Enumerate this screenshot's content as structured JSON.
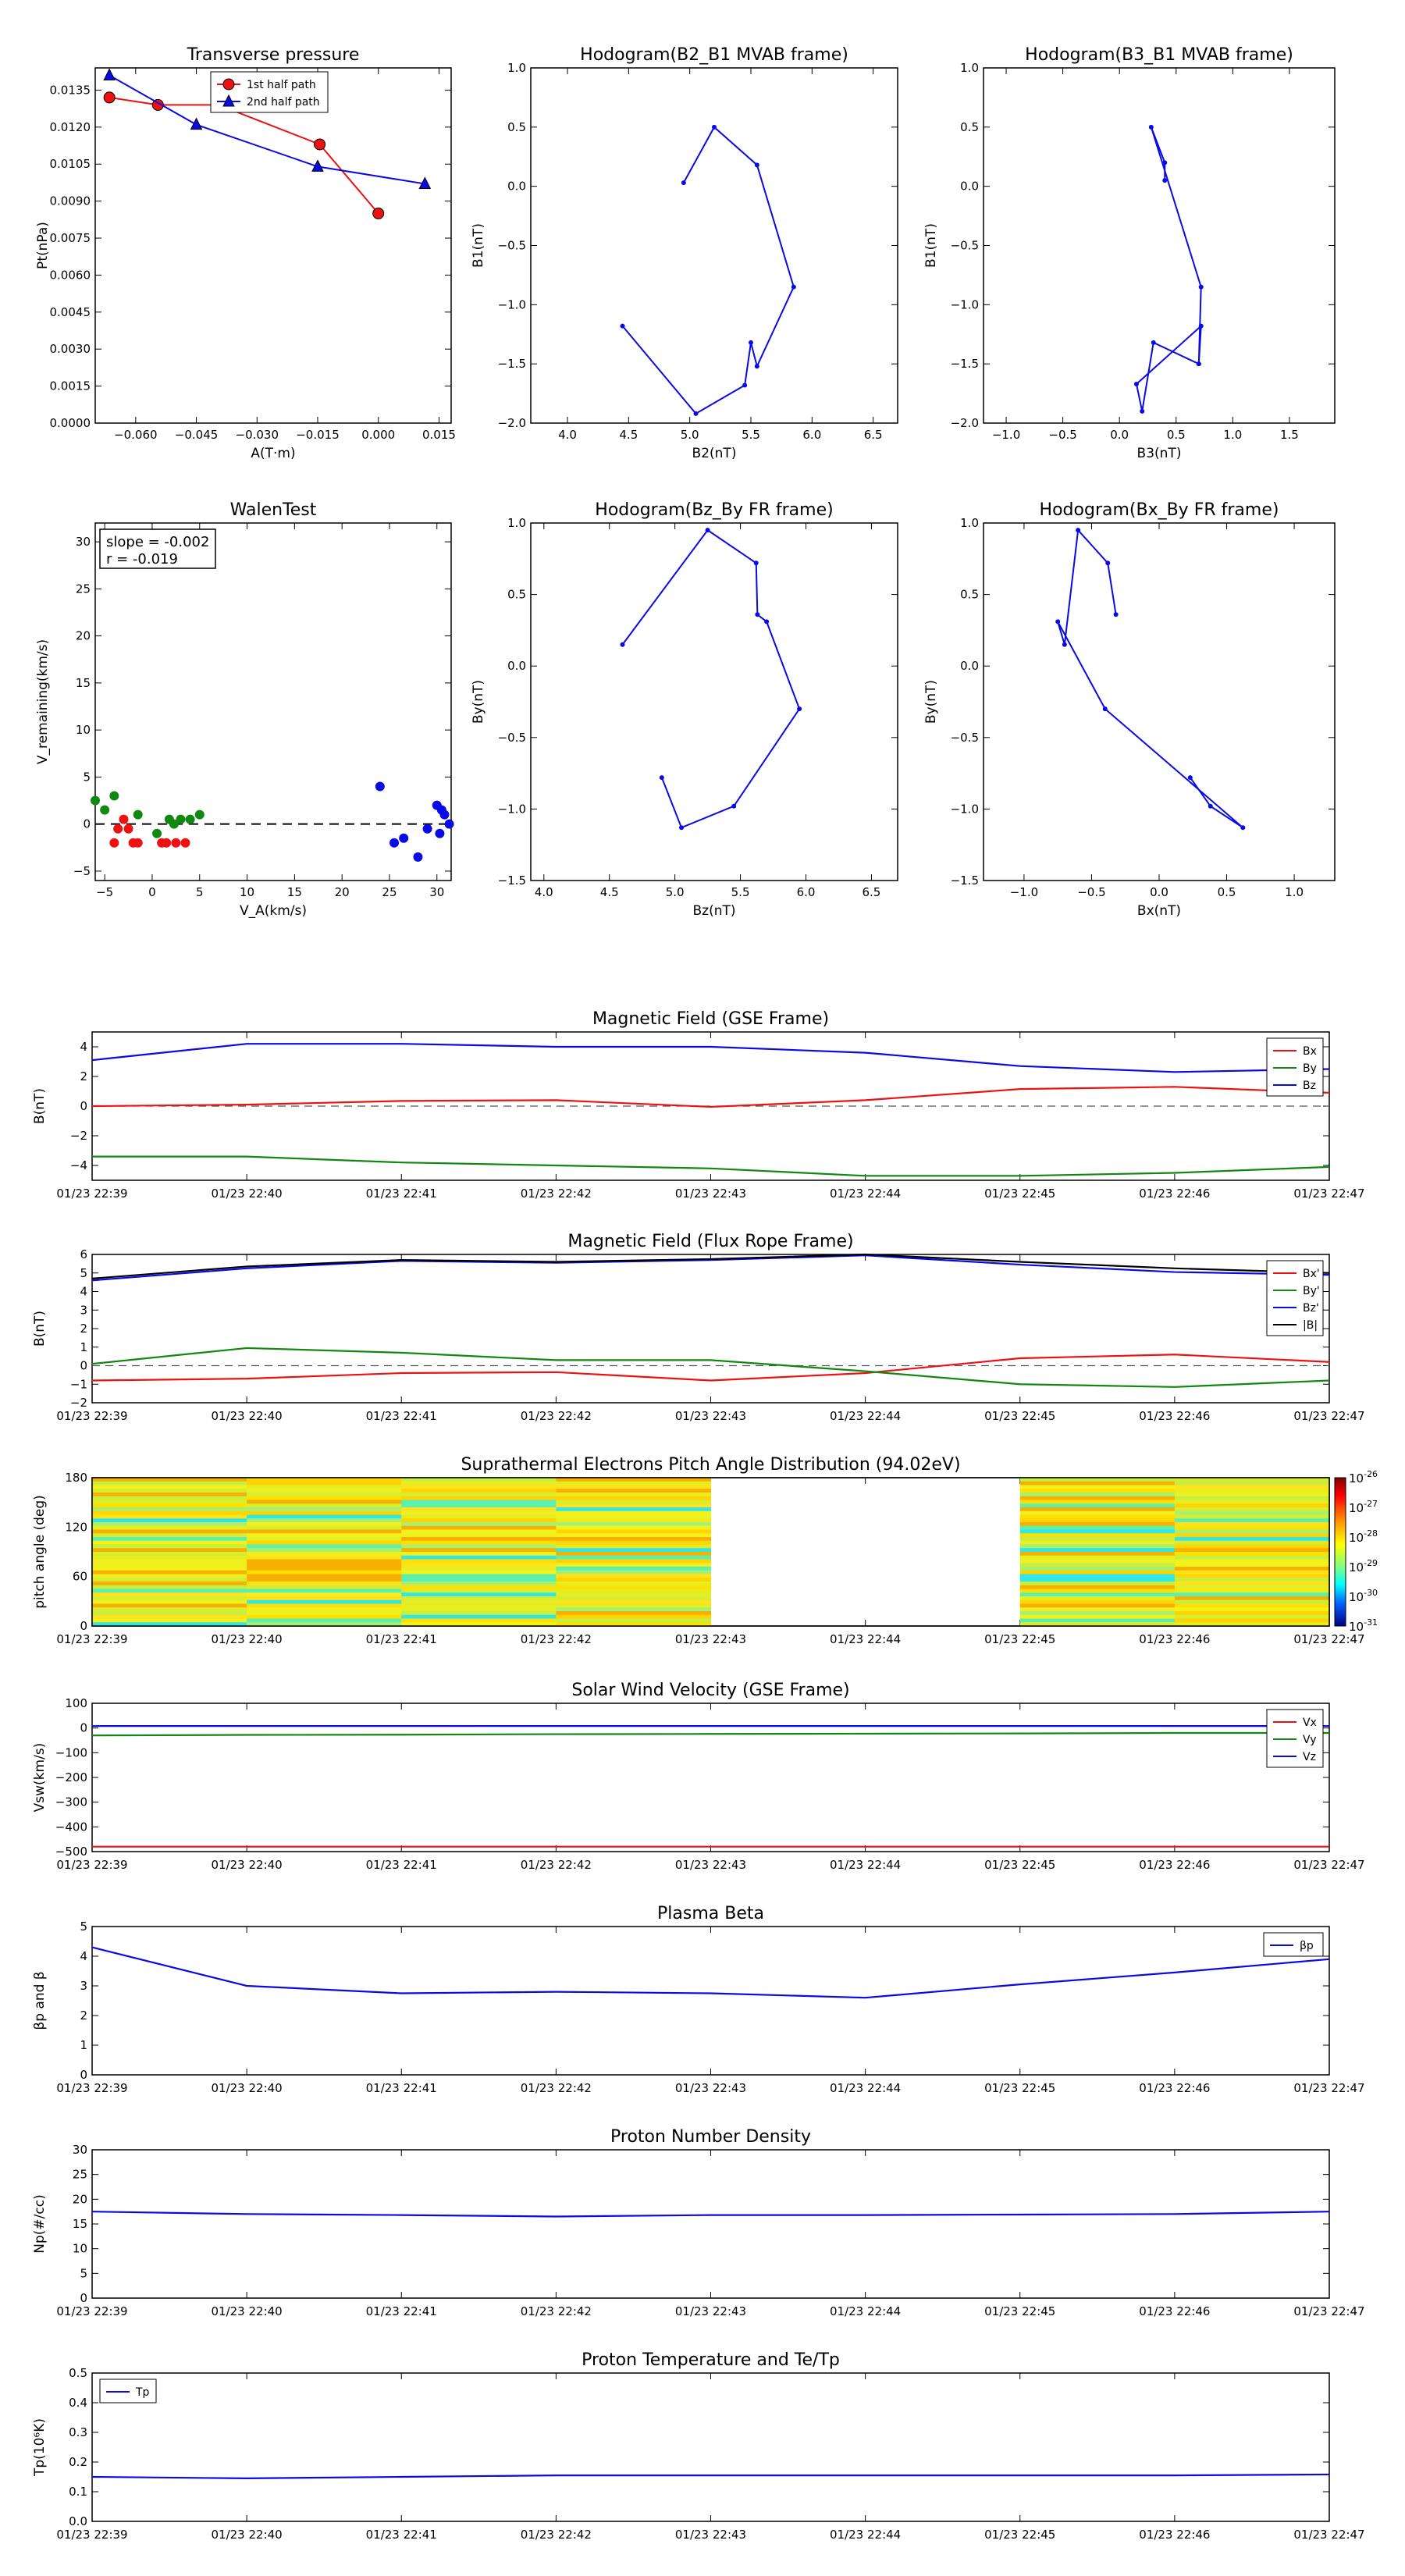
{
  "time_ticks": [
    "01/23 22:39",
    "01/23 22:40",
    "01/23 22:41",
    "01/23 22:42",
    "01/23 22:43",
    "01/23 22:44",
    "01/23 22:45",
    "01/23 22:46",
    "01/23 22:47"
  ],
  "colors": {
    "red": "#ee1111",
    "green": "#118811",
    "blue": "#0a0ae6",
    "black": "#000000",
    "dashed": "#555555"
  },
  "chart_data": [
    {
      "id": "transverse-pressure",
      "type": "line",
      "title": "Transverse pressure",
      "xlabel": "A(T·m)",
      "ylabel": "Pt(nPa)",
      "xlim": [
        -0.07,
        0.018
      ],
      "ylim": [
        0,
        0.0144
      ],
      "xticks": [
        "−0.060",
        "−0.045",
        "−0.030",
        "−0.015",
        "0.000",
        "0.015"
      ],
      "xtick_values": [
        -0.06,
        -0.045,
        -0.03,
        -0.015,
        0,
        0.015
      ],
      "yticks": [
        "0.0000",
        "0.0015",
        "0.0030",
        "0.0045",
        "0.0060",
        "0.0075",
        "0.0090",
        "0.0105",
        "0.0120",
        "0.0135"
      ],
      "ytick_values": [
        0,
        0.0015,
        0.003,
        0.0045,
        0.006,
        0.0075,
        0.009,
        0.0105,
        0.012,
        0.0135
      ],
      "legend_position": "top-center",
      "series": [
        {
          "name": "1st half path",
          "color": "red",
          "marker": "circle",
          "x": [
            -0.0665,
            -0.0545,
            -0.0395,
            -0.0145,
            0.0
          ],
          "y": [
            0.0132,
            0.0129,
            0.0129,
            0.0113,
            0.0085
          ]
        },
        {
          "name": "2nd half path",
          "color": "blue",
          "marker": "triangle",
          "x": [
            -0.0665,
            -0.045,
            -0.015,
            0.0115
          ],
          "y": [
            0.0141,
            0.0121,
            0.0104,
            0.0097
          ]
        }
      ]
    },
    {
      "id": "hodogram-b2-b1",
      "type": "line",
      "title": "Hodogram(B2_B1 MVAB frame)",
      "xlabel": "B2(nT)",
      "ylabel": "B1(nT)",
      "xlim": [
        3.7,
        6.7
      ],
      "ylim": [
        -2.0,
        1.0
      ],
      "xticks": [
        "4.0",
        "4.5",
        "5.0",
        "5.5",
        "6.0",
        "6.5"
      ],
      "xtick_values": [
        4.0,
        4.5,
        5.0,
        5.5,
        6.0,
        6.5
      ],
      "yticks": [
        "−2.0",
        "−1.5",
        "−1.0",
        "−0.5",
        "0.0",
        "0.5",
        "1.0"
      ],
      "ytick_values": [
        -2.0,
        -1.5,
        -1.0,
        -0.5,
        0.0,
        0.5,
        1.0
      ],
      "series": [
        {
          "color": "blue",
          "marker": "dot",
          "x": [
            4.95,
            5.2,
            5.55,
            5.85,
            5.55,
            5.5,
            5.45,
            5.05,
            4.45
          ],
          "y": [
            0.03,
            0.5,
            0.18,
            -0.85,
            -1.52,
            -1.32,
            -1.68,
            -1.92,
            -1.18
          ]
        }
      ]
    },
    {
      "id": "hodogram-b3-b1",
      "type": "line",
      "title": "Hodogram(B3_B1 MVAB frame)",
      "xlabel": "B3(nT)",
      "ylabel": "B1(nT)",
      "xlim": [
        -1.2,
        1.9
      ],
      "ylim": [
        -2.0,
        1.0
      ],
      "xticks": [
        "−1.0",
        "−0.5",
        "0.0",
        "0.5",
        "1.0",
        "1.5"
      ],
      "xtick_values": [
        -1.0,
        -0.5,
        0.0,
        0.5,
        1.0,
        1.5
      ],
      "yticks": [
        "−2.0",
        "−1.5",
        "−1.0",
        "−0.5",
        "0.0",
        "0.5",
        "1.0"
      ],
      "ytick_values": [
        -2.0,
        -1.5,
        -1.0,
        -0.5,
        0.0,
        0.5,
        1.0
      ],
      "series": [
        {
          "color": "blue",
          "marker": "dot",
          "x": [
            0.4,
            0.4,
            0.28,
            0.72,
            0.7,
            0.3,
            0.2,
            0.15,
            0.72,
            0.7
          ],
          "y": [
            0.05,
            0.2,
            0.5,
            -0.85,
            -1.5,
            -1.32,
            -1.9,
            -1.67,
            -1.18,
            -1.5
          ]
        }
      ]
    },
    {
      "id": "walen-test",
      "type": "scatter",
      "title": "WalenTest",
      "xlabel": "V_A(km/s)",
      "ylabel": "V_remaining(km/s)",
      "xlim": [
        -6,
        31.5
      ],
      "ylim": [
        -6,
        32
      ],
      "xticks": [
        "−5",
        "0",
        "5",
        "10",
        "15",
        "20",
        "25",
        "30"
      ],
      "xtick_values": [
        -5,
        0,
        5,
        10,
        15,
        20,
        25,
        30
      ],
      "yticks": [
        "−5",
        "0",
        "5",
        "10",
        "15",
        "20",
        "25",
        "30"
      ],
      "ytick_values": [
        -5,
        0,
        5,
        10,
        15,
        20,
        25,
        30
      ],
      "annotation": [
        "slope = -0.002",
        "r = -0.019"
      ],
      "series": [
        {
          "color": "green",
          "x": [
            -6,
            -5,
            -4,
            -1.5,
            0.5,
            1.8,
            2.3,
            3,
            4,
            5
          ],
          "y": [
            2.5,
            1.5,
            3,
            1,
            -1,
            0.5,
            0,
            0.5,
            0.5,
            1
          ]
        },
        {
          "color": "red",
          "x": [
            -4,
            -3.6,
            -3,
            -2.5,
            -2,
            -1.5,
            1,
            1.5,
            2.5,
            3.5
          ],
          "y": [
            -2,
            -0.5,
            0.5,
            -0.5,
            -2,
            -2,
            -2,
            -2,
            -2,
            -2
          ]
        },
        {
          "color": "blue",
          "x": [
            24,
            25.5,
            26.5,
            28,
            29,
            30,
            30.3,
            30.5,
            30.8,
            31.3
          ],
          "y": [
            4,
            -2,
            -1.5,
            -3.5,
            -0.5,
            2,
            -1,
            1.5,
            1,
            0
          ]
        }
      ]
    },
    {
      "id": "hodogram-bz-by",
      "type": "line",
      "title": "Hodogram(Bz_By FR frame)",
      "xlabel": "Bz(nT)",
      "ylabel": "By(nT)",
      "xlim": [
        3.9,
        6.7
      ],
      "ylim": [
        -1.5,
        1.0
      ],
      "xticks": [
        "4.0",
        "4.5",
        "5.0",
        "5.5",
        "6.0",
        "6.5"
      ],
      "xtick_values": [
        4.0,
        4.5,
        5.0,
        5.5,
        6.0,
        6.5
      ],
      "yticks": [
        "−1.5",
        "−1.0",
        "−0.5",
        "0.0",
        "0.5",
        "1.0"
      ],
      "ytick_values": [
        -1.5,
        -1.0,
        -0.5,
        0.0,
        0.5,
        1.0
      ],
      "series": [
        {
          "color": "blue",
          "marker": "dot",
          "x": [
            4.6,
            5.25,
            5.62,
            5.63,
            5.7,
            5.95,
            5.45,
            5.05,
            4.9
          ],
          "y": [
            0.15,
            0.95,
            0.72,
            0.36,
            0.31,
            -0.3,
            -0.98,
            -1.13,
            -0.78
          ]
        }
      ]
    },
    {
      "id": "hodogram-bx-by",
      "type": "line",
      "title": "Hodogram(Bx_By FR frame)",
      "xlabel": "Bx(nT)",
      "ylabel": "By(nT)",
      "xlim": [
        -1.3,
        1.3
      ],
      "ylim": [
        -1.5,
        1.0
      ],
      "xticks": [
        "−1.0",
        "−0.5",
        "0.0",
        "0.5",
        "1.0"
      ],
      "xtick_values": [
        -1.0,
        -0.5,
        0.0,
        0.5,
        1.0
      ],
      "yticks": [
        "−1.5",
        "−1.0",
        "−0.5",
        "0.0",
        "0.5",
        "1.0"
      ],
      "ytick_values": [
        -1.5,
        -1.0,
        -0.5,
        0.0,
        0.5,
        1.0
      ],
      "series": [
        {
          "color": "blue",
          "marker": "dot",
          "x": [
            -0.32,
            -0.38,
            -0.6,
            -0.7,
            -0.75,
            -0.4,
            0.62,
            0.38,
            0.23
          ],
          "y": [
            0.36,
            0.72,
            0.95,
            0.15,
            0.31,
            -0.3,
            -1.13,
            -0.98,
            -0.78
          ]
        }
      ]
    },
    {
      "id": "magnetic-field-gse",
      "type": "line",
      "title": "Magnetic Field (GSE Frame)",
      "ylabel": "B(nT)",
      "ylim": [
        -5,
        5
      ],
      "yticks": [
        "−4",
        "−2",
        "0",
        "2",
        "4"
      ],
      "ytick_values": [
        -4,
        -2,
        0,
        2,
        4
      ],
      "legend_position": "top-right",
      "zero_line": true,
      "series": [
        {
          "name": "Bx",
          "color": "red",
          "values": [
            0,
            0.1,
            0.35,
            0.4,
            -0.05,
            0.4,
            1.15,
            1.3,
            0.9
          ]
        },
        {
          "name": "By",
          "color": "green",
          "values": [
            -3.4,
            -3.4,
            -3.8,
            -4.0,
            -4.2,
            -4.7,
            -4.7,
            -4.5,
            -4.1
          ]
        },
        {
          "name": "Bz",
          "color": "blue",
          "values": [
            3.1,
            4.2,
            4.2,
            4.0,
            4.0,
            3.6,
            2.7,
            2.3,
            2.5
          ]
        }
      ]
    },
    {
      "id": "magnetic-field-flux-rope",
      "type": "line",
      "title": "Magnetic Field (Flux Rope Frame)",
      "ylabel": "B(nT)",
      "ylim": [
        -2,
        6
      ],
      "yticks": [
        "−2",
        "−1",
        "0",
        "1",
        "2",
        "3",
        "4",
        "5",
        "6"
      ],
      "ytick_values": [
        -2,
        -1,
        0,
        1,
        2,
        3,
        4,
        5,
        6
      ],
      "legend_position": "top-right",
      "zero_line": true,
      "series": [
        {
          "name": "Bx'",
          "color": "red",
          "values": [
            -0.8,
            -0.7,
            -0.4,
            -0.35,
            -0.8,
            -0.4,
            0.4,
            0.6,
            0.2
          ]
        },
        {
          "name": "By'",
          "color": "green",
          "values": [
            0.1,
            0.95,
            0.7,
            0.3,
            0.3,
            -0.3,
            -1.0,
            -1.15,
            -0.8
          ]
        },
        {
          "name": "Bz'",
          "color": "blue",
          "values": [
            4.6,
            5.25,
            5.65,
            5.55,
            5.7,
            5.95,
            5.45,
            5.05,
            4.9
          ]
        },
        {
          "name": "|B|",
          "color": "black",
          "values": [
            4.7,
            5.35,
            5.7,
            5.6,
            5.75,
            6.0,
            5.6,
            5.25,
            5.0
          ]
        }
      ]
    },
    {
      "id": "pitch-angle-distribution",
      "type": "heatmap",
      "title": "Suprathermal Electrons Pitch Angle Distribution (94.02eV)",
      "ylabel": "pitch angle (deg)",
      "ylim": [
        0,
        180
      ],
      "yticks": [
        "0",
        "60",
        "120",
        "180"
      ],
      "ytick_values": [
        0,
        60,
        120,
        180
      ],
      "colorbar_ticks": [
        "10",
        "10",
        "10",
        "10",
        "10",
        "10"
      ],
      "colorbar_exponents": [
        "-26",
        "-27",
        "-28",
        "-29",
        "-30",
        "-31"
      ],
      "log_scale": true,
      "empty_columns": [
        4,
        5
      ]
    },
    {
      "id": "solar-wind-velocity",
      "type": "line",
      "title": "Solar Wind Velocity (GSE Frame)",
      "ylabel": "Vsw(km/s)",
      "ylim": [
        -500,
        100
      ],
      "yticks": [
        "−500",
        "−400",
        "−300",
        "−200",
        "−100",
        "0",
        "100"
      ],
      "ytick_values": [
        -500,
        -400,
        -300,
        -200,
        -100,
        0,
        100
      ],
      "legend_position": "top-right",
      "series": [
        {
          "name": "Vx",
          "color": "red",
          "values": [
            -480,
            -480,
            -480,
            -480,
            -480,
            -480,
            -480,
            -480,
            -480
          ]
        },
        {
          "name": "Vy",
          "color": "green",
          "values": [
            -30,
            -28,
            -27,
            -25,
            -24,
            -23,
            -22,
            -20,
            -20
          ]
        },
        {
          "name": "Vz",
          "color": "blue",
          "values": [
            8,
            8,
            8,
            8,
            8,
            8,
            8,
            8,
            8
          ]
        }
      ]
    },
    {
      "id": "plasma-beta",
      "type": "line",
      "title": "Plasma Beta",
      "ylabel": "βp and β",
      "ylim": [
        0,
        5
      ],
      "yticks": [
        "0",
        "1",
        "2",
        "3",
        "4",
        "5"
      ],
      "ytick_values": [
        0,
        1,
        2,
        3,
        4,
        5
      ],
      "legend_position": "top-right",
      "series": [
        {
          "name": "βp",
          "color": "blue",
          "values": [
            4.3,
            3.0,
            2.75,
            2.8,
            2.75,
            2.6,
            3.05,
            3.45,
            3.9
          ]
        }
      ]
    },
    {
      "id": "proton-number-density",
      "type": "line",
      "title": "Proton Number Density",
      "ylabel": "Np(#/cc)",
      "ylim": [
        0,
        30
      ],
      "yticks": [
        "0",
        "5",
        "10",
        "15",
        "20",
        "25",
        "30"
      ],
      "ytick_values": [
        0,
        5,
        10,
        15,
        20,
        25,
        30
      ],
      "series": [
        {
          "color": "blue",
          "values": [
            17.5,
            17.0,
            16.8,
            16.5,
            16.8,
            16.8,
            16.9,
            17.0,
            17.5
          ]
        }
      ]
    },
    {
      "id": "proton-temperature",
      "type": "line",
      "title": "Proton Temperature and Te/Tp",
      "ylabel": "Tp(10⁶K)",
      "ylim": [
        0,
        0.5
      ],
      "yticks": [
        "0.0",
        "0.1",
        "0.2",
        "0.3",
        "0.4",
        "0.5"
      ],
      "ytick_values": [
        0,
        0.1,
        0.2,
        0.3,
        0.4,
        0.5
      ],
      "legend_position": "top-left",
      "series": [
        {
          "name": "Tp",
          "color": "blue",
          "values": [
            0.15,
            0.145,
            0.15,
            0.155,
            0.155,
            0.155,
            0.155,
            0.155,
            0.158
          ]
        }
      ]
    }
  ]
}
